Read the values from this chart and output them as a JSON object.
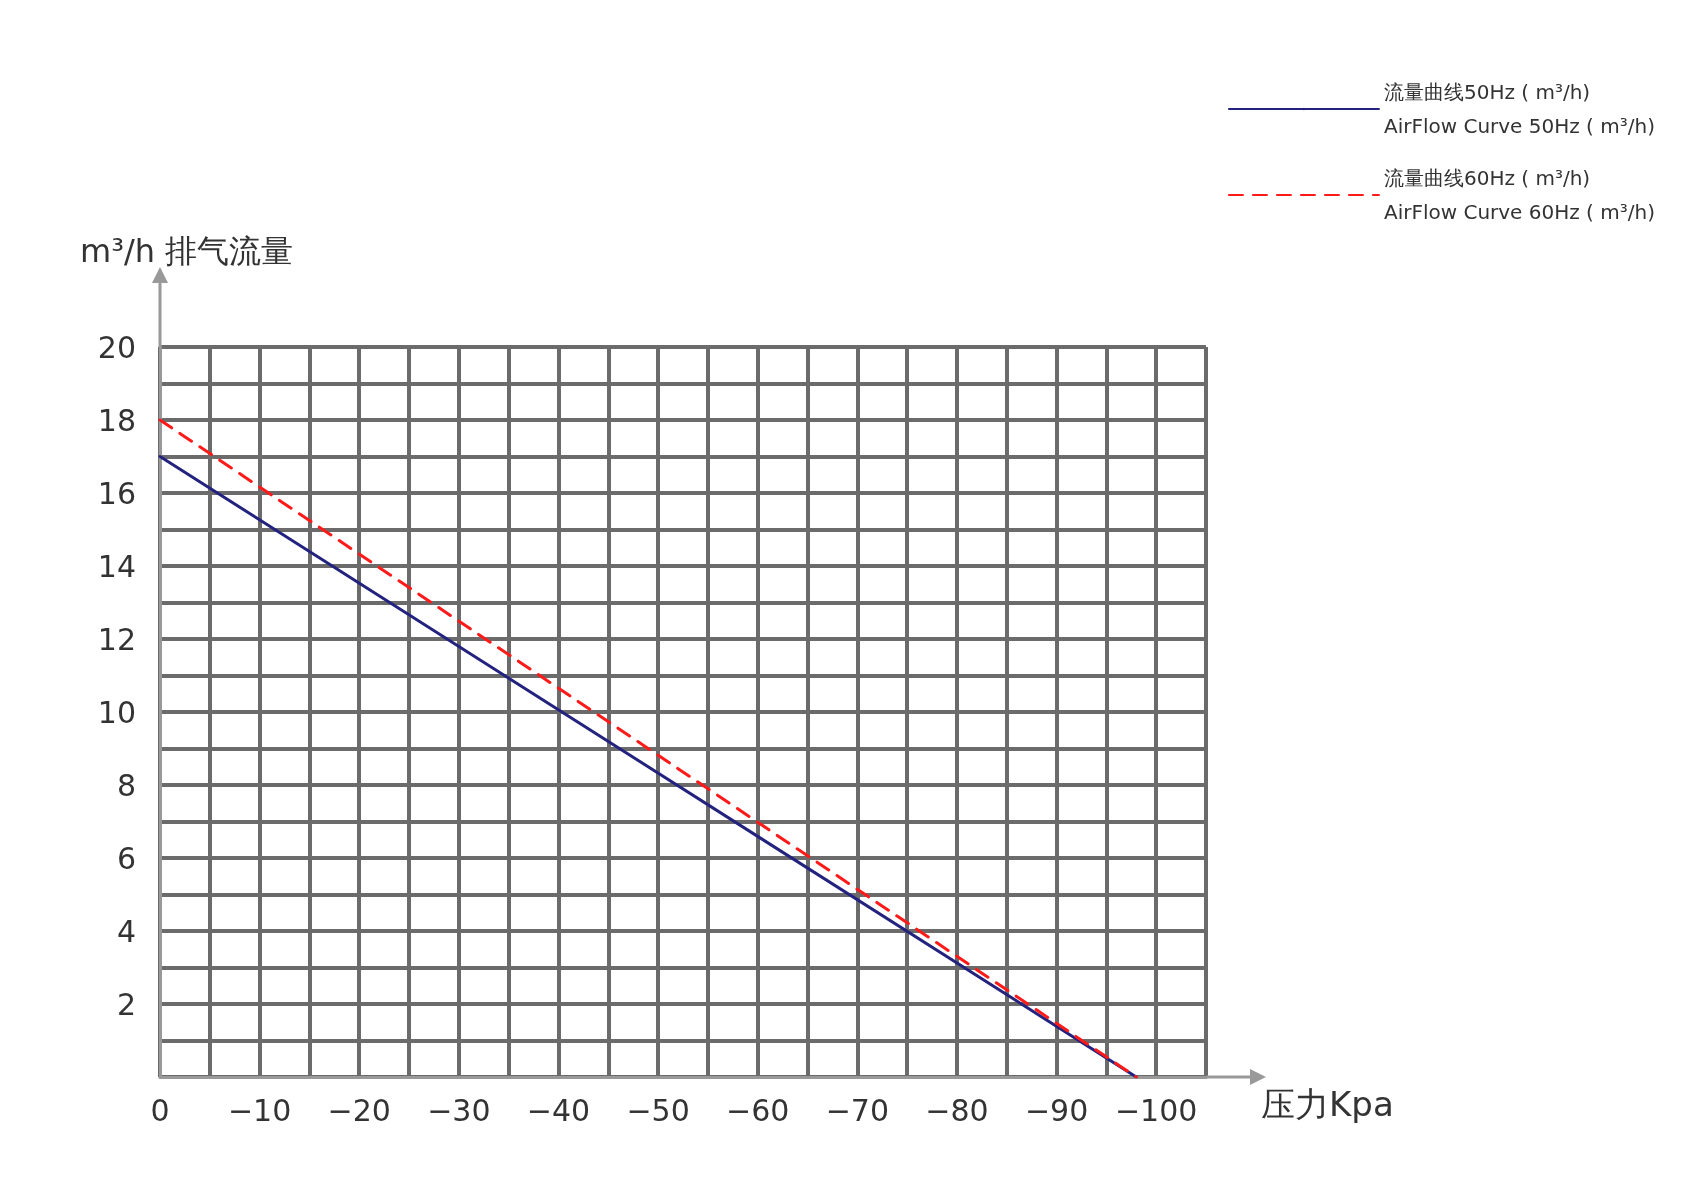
{
  "chart_data": {
    "type": "line",
    "xlabel": "压力Kpa",
    "ylabel": "m³/h 排气流量",
    "x": [
      0,
      -98
    ],
    "series": [
      {
        "name": "流量曲线50Hz ( m³/h)\nAirFlow Curve 50Hz ( m³/h)",
        "color": "#23237f",
        "values": [
          17,
          0
        ],
        "line_style": "solid"
      },
      {
        "name": "流量曲线60Hz ( m³/h)\nAirFlow Curve 60Hz ( m³/h)",
        "color": "#ff1a1a",
        "values": [
          18,
          0
        ],
        "line_style": "dashed"
      }
    ],
    "xlim": [
      0,
      -105
    ],
    "xticks": [
      0,
      {
        "value": -5,
        "label": null
      },
      {
        "value": -10,
        "label": "−10"
      },
      {
        "value": -15,
        "label": null
      },
      {
        "value": -20,
        "label": "−20"
      },
      {
        "value": -25,
        "label": null
      },
      {
        "value": -30,
        "label": "−30"
      },
      {
        "value": -35,
        "label": null
      },
      {
        "value": -40,
        "label": "−40"
      },
      {
        "value": -45,
        "label": null
      },
      {
        "value": -50,
        "label": "−50"
      },
      {
        "value": -55,
        "label": null
      },
      {
        "value": -60,
        "label": "−60"
      },
      {
        "value": -65,
        "label": null
      },
      {
        "value": -70,
        "label": "−70"
      },
      {
        "value": -75,
        "label": null
      },
      {
        "value": -80,
        "label": "−80"
      },
      {
        "value": -85,
        "label": null
      },
      {
        "value": -90,
        "label": "−90"
      },
      {
        "value": -95,
        "label": null
      },
      {
        "value": -100,
        "label": "−100"
      },
      {
        "value": -105,
        "label": null
      }
    ],
    "ylim": [
      0,
      20
    ],
    "yticks": [
      {
        "value": 0,
        "label": null
      },
      {
        "value": 1,
        "label": null
      },
      2,
      {
        "value": 3,
        "label": null
      },
      4,
      {
        "value": 5,
        "label": null
      },
      6,
      {
        "value": 7,
        "label": null
      },
      8,
      {
        "value": 9,
        "label": null
      },
      10,
      {
        "value": 11,
        "label": null
      },
      12,
      {
        "value": 13,
        "label": null
      },
      14,
      {
        "value": 15,
        "label": null
      },
      16,
      {
        "value": 17,
        "label": null
      },
      18,
      {
        "value": 19,
        "label": null
      },
      20
    ],
    "grid": true,
    "legend": "top right",
    "marker": "none"
  }
}
